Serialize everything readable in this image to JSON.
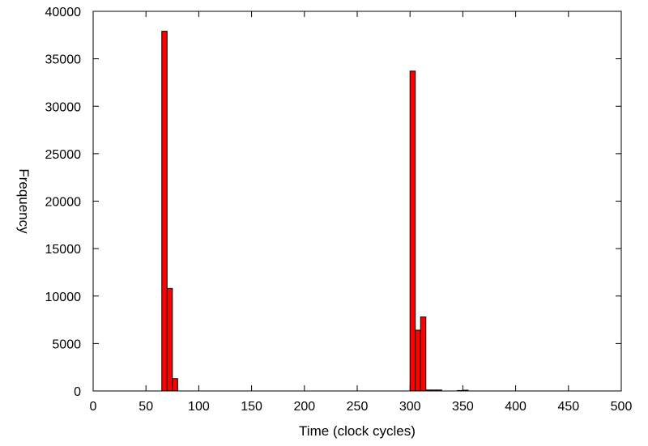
{
  "chart_data": {
    "type": "bar",
    "title": "",
    "xlabel": "Time (clock cycles)",
    "ylabel": "Frequency",
    "xlim": [
      0,
      500
    ],
    "ylim": [
      0,
      40000
    ],
    "xticks": [
      "0",
      "50",
      "100",
      "150",
      "200",
      "250",
      "300",
      "350",
      "400",
      "450",
      "500"
    ],
    "yticks": [
      "0",
      "5000",
      "10000",
      "15000",
      "20000",
      "25000",
      "30000",
      "35000",
      "40000"
    ],
    "bin_width": 5,
    "bar_color": "#ff0000",
    "bar_stroke": "#000000",
    "grid": false,
    "bins": [
      {
        "x": 65,
        "value": 37900
      },
      {
        "x": 70,
        "value": 10800
      },
      {
        "x": 75,
        "value": 1300
      },
      {
        "x": 300,
        "value": 33700
      },
      {
        "x": 305,
        "value": 6400
      },
      {
        "x": 310,
        "value": 7800
      },
      {
        "x": 315,
        "value": 100
      },
      {
        "x": 320,
        "value": 100
      },
      {
        "x": 325,
        "value": 100
      },
      {
        "x": 345,
        "value": 50
      },
      {
        "x": 350,
        "value": 80
      }
    ]
  }
}
